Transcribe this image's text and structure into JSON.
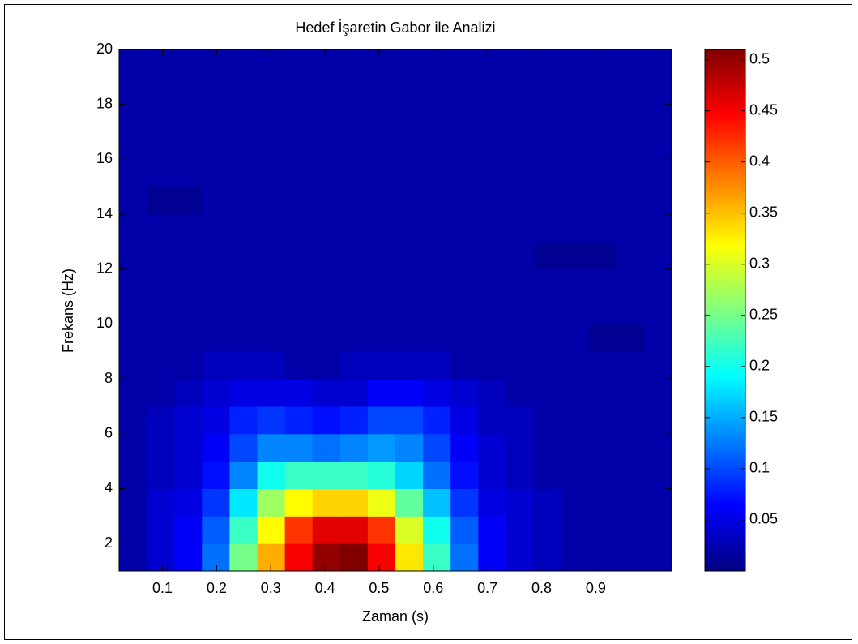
{
  "chart_data": {
    "type": "heatmap",
    "title": "Hedef İşaretin Gabor ile Analizi",
    "x_label": "Zaman (s)",
    "y_label": "Frekans (Hz)",
    "x": [
      0.0455,
      0.0965,
      0.1475,
      0.1985,
      0.2495,
      0.3005,
      0.3515,
      0.4025,
      0.4535,
      0.5045,
      0.5555,
      0.6065,
      0.6575,
      0.7085,
      0.7595,
      0.8105,
      0.8615,
      0.9125,
      0.9635,
      1.0145
    ],
    "y": [
      1.5,
      2.5,
      3.5,
      4.5,
      5.5,
      6.5,
      7.5,
      8.5,
      9.5,
      10.5,
      11.5,
      12.5,
      13.5,
      14.5,
      15.5,
      16.5,
      17.5,
      18.5,
      19.5
    ],
    "z": [
      [
        0.02,
        0.04,
        0.06,
        0.12,
        0.25,
        0.36,
        0.45,
        0.5,
        0.51,
        0.45,
        0.33,
        0.22,
        0.12,
        0.06,
        0.04,
        0.03,
        0.02,
        0.02,
        0.02,
        0.02
      ],
      [
        0.02,
        0.04,
        0.06,
        0.11,
        0.22,
        0.32,
        0.42,
        0.46,
        0.46,
        0.42,
        0.3,
        0.2,
        0.11,
        0.06,
        0.04,
        0.03,
        0.02,
        0.02,
        0.02,
        0.02
      ],
      [
        0.02,
        0.04,
        0.05,
        0.09,
        0.18,
        0.27,
        0.32,
        0.34,
        0.34,
        0.31,
        0.24,
        0.16,
        0.09,
        0.05,
        0.04,
        0.03,
        0.02,
        0.02,
        0.02,
        0.02
      ],
      [
        0.02,
        0.03,
        0.04,
        0.07,
        0.13,
        0.2,
        0.22,
        0.22,
        0.22,
        0.21,
        0.17,
        0.12,
        0.07,
        0.04,
        0.03,
        0.02,
        0.02,
        0.02,
        0.02,
        0.02
      ],
      [
        0.02,
        0.03,
        0.04,
        0.06,
        0.1,
        0.13,
        0.13,
        0.12,
        0.13,
        0.14,
        0.13,
        0.1,
        0.06,
        0.04,
        0.03,
        0.02,
        0.02,
        0.02,
        0.02,
        0.02
      ],
      [
        0.02,
        0.03,
        0.04,
        0.05,
        0.08,
        0.09,
        0.08,
        0.07,
        0.08,
        0.1,
        0.1,
        0.08,
        0.05,
        0.03,
        0.03,
        0.02,
        0.02,
        0.02,
        0.02,
        0.02
      ],
      [
        0.02,
        0.02,
        0.03,
        0.04,
        0.05,
        0.05,
        0.05,
        0.04,
        0.04,
        0.06,
        0.06,
        0.05,
        0.04,
        0.03,
        0.02,
        0.02,
        0.02,
        0.02,
        0.02,
        0.02
      ],
      [
        0.02,
        0.02,
        0.02,
        0.03,
        0.03,
        0.03,
        0.02,
        0.02,
        0.03,
        0.03,
        0.03,
        0.03,
        0.02,
        0.02,
        0.02,
        0.02,
        0.02,
        0.02,
        0.02,
        0.02
      ],
      [
        0.02,
        0.02,
        0.02,
        0.02,
        0.02,
        0.02,
        0.02,
        0.02,
        0.02,
        0.02,
        0.02,
        0.02,
        0.02,
        0.02,
        0.02,
        0.02,
        0.02,
        0.01,
        0.01,
        0.02
      ],
      [
        0.02,
        0.02,
        0.02,
        0.02,
        0.02,
        0.02,
        0.02,
        0.02,
        0.02,
        0.02,
        0.02,
        0.02,
        0.02,
        0.02,
        0.02,
        0.02,
        0.02,
        0.02,
        0.02,
        0.02
      ],
      [
        0.02,
        0.02,
        0.02,
        0.02,
        0.02,
        0.02,
        0.02,
        0.02,
        0.02,
        0.02,
        0.02,
        0.02,
        0.02,
        0.02,
        0.02,
        0.02,
        0.02,
        0.02,
        0.02,
        0.02
      ],
      [
        0.02,
        0.02,
        0.02,
        0.02,
        0.02,
        0.02,
        0.02,
        0.02,
        0.02,
        0.02,
        0.02,
        0.02,
        0.02,
        0.02,
        0.02,
        0.01,
        0.01,
        0.01,
        0.02,
        0.02
      ],
      [
        0.02,
        0.02,
        0.02,
        0.02,
        0.02,
        0.02,
        0.02,
        0.02,
        0.02,
        0.02,
        0.02,
        0.02,
        0.02,
        0.02,
        0.02,
        0.02,
        0.02,
        0.02,
        0.02,
        0.02
      ],
      [
        0.02,
        0.01,
        0.01,
        0.02,
        0.02,
        0.02,
        0.02,
        0.02,
        0.02,
        0.02,
        0.02,
        0.02,
        0.02,
        0.02,
        0.02,
        0.02,
        0.02,
        0.02,
        0.02,
        0.02
      ],
      [
        0.02,
        0.02,
        0.02,
        0.02,
        0.02,
        0.02,
        0.02,
        0.02,
        0.02,
        0.02,
        0.02,
        0.02,
        0.02,
        0.02,
        0.02,
        0.02,
        0.02,
        0.02,
        0.02,
        0.02
      ],
      [
        0.02,
        0.02,
        0.02,
        0.02,
        0.02,
        0.02,
        0.02,
        0.02,
        0.02,
        0.02,
        0.02,
        0.02,
        0.02,
        0.02,
        0.02,
        0.02,
        0.02,
        0.02,
        0.02,
        0.02
      ],
      [
        0.02,
        0.02,
        0.02,
        0.02,
        0.02,
        0.02,
        0.02,
        0.02,
        0.02,
        0.02,
        0.02,
        0.02,
        0.02,
        0.02,
        0.02,
        0.02,
        0.02,
        0.02,
        0.02,
        0.02
      ],
      [
        0.02,
        0.02,
        0.02,
        0.02,
        0.02,
        0.02,
        0.02,
        0.02,
        0.02,
        0.02,
        0.02,
        0.02,
        0.02,
        0.02,
        0.02,
        0.02,
        0.02,
        0.02,
        0.02,
        0.02
      ],
      [
        0.02,
        0.02,
        0.02,
        0.02,
        0.02,
        0.02,
        0.02,
        0.02,
        0.02,
        0.02,
        0.02,
        0.02,
        0.02,
        0.02,
        0.02,
        0.02,
        0.02,
        0.02,
        0.02,
        0.02
      ]
    ],
    "xlim": [
      0.02,
      1.04
    ],
    "xticks": [
      0.1,
      0.2,
      0.3,
      0.4,
      0.5,
      0.6,
      0.7,
      0.8,
      0.9
    ],
    "ylim": [
      1,
      20
    ],
    "yticks": [
      2,
      4,
      6,
      8,
      10,
      12,
      14,
      16,
      18,
      20
    ],
    "colormap": "jet",
    "clim": [
      0,
      0.51
    ],
    "cticks": [
      0.05,
      0.1,
      0.15,
      0.2,
      0.25,
      0.3,
      0.35,
      0.4,
      0.45,
      0.5
    ]
  }
}
